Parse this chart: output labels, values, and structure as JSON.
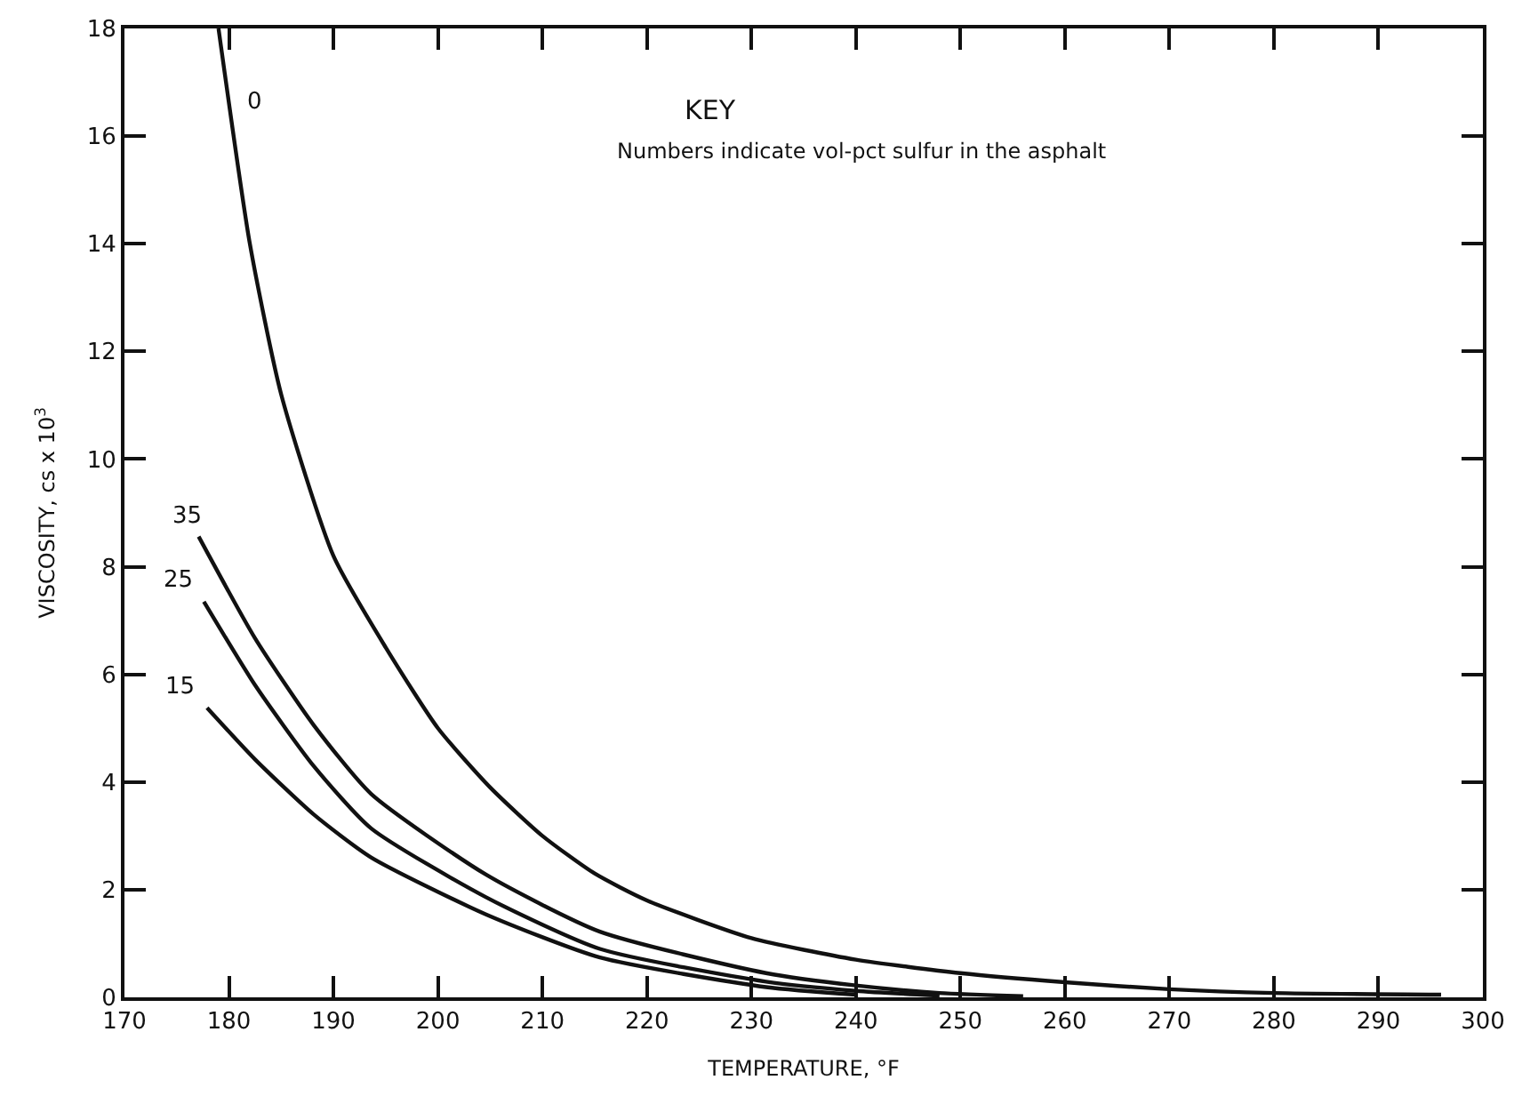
{
  "chart_data": {
    "type": "line",
    "xlabel": "TEMPERATURE, °F",
    "ylabel": "VISCOSITY, cs x 10$^{3}$",
    "annotations": [
      "KEY",
      "Numbers indicate vol-pct sulfur in the asphalt"
    ],
    "xlim": [
      170,
      300
    ],
    "xticks": [
      170,
      180,
      190,
      200,
      210,
      220,
      230,
      240,
      250,
      260,
      270,
      280,
      290,
      300
    ],
    "ylim": [
      0,
      18
    ],
    "yticks": [
      0,
      2,
      4,
      6,
      8,
      10,
      12,
      14,
      16,
      18
    ],
    "legend": false,
    "marker": "none",
    "line_style": "solid",
    "series": [
      {
        "name": "0",
        "color": "#111111",
        "x": [
          179,
          182,
          185,
          190,
          195,
          200,
          205,
          210,
          215,
          220,
          230,
          240,
          250,
          260,
          270,
          280,
          296
        ],
        "values": [
          18,
          14,
          11.2,
          8.2,
          6.5,
          5.0,
          3.9,
          3.0,
          2.3,
          1.8,
          1.1,
          0.7,
          0.45,
          0.28,
          0.15,
          0.08,
          0.05
        ]
      },
      {
        "name": "35",
        "color": "#111111",
        "x": [
          177.1,
          182.5,
          188.1,
          193.6,
          204.6,
          215.5,
          231.4,
          240,
          248,
          256
        ],
        "values": [
          8.56,
          6.67,
          5.06,
          3.78,
          2.28,
          1.22,
          0.45,
          0.22,
          0.08,
          0.02
        ]
      },
      {
        "name": "25",
        "color": "#111111",
        "x": [
          177.6,
          182.5,
          188.1,
          193.6,
          204.6,
          215.5,
          231.4,
          240,
          248
        ],
        "values": [
          7.35,
          5.8,
          4.3,
          3.14,
          1.86,
          0.9,
          0.29,
          0.12,
          0.03
        ]
      },
      {
        "name": "15",
        "color": "#111111",
        "x": [
          177.9,
          182.5,
          188.1,
          193.6,
          204.6,
          215.5,
          231.4,
          240
        ],
        "values": [
          5.38,
          4.42,
          3.4,
          2.6,
          1.54,
          0.74,
          0.19,
          0.05
        ]
      }
    ]
  }
}
